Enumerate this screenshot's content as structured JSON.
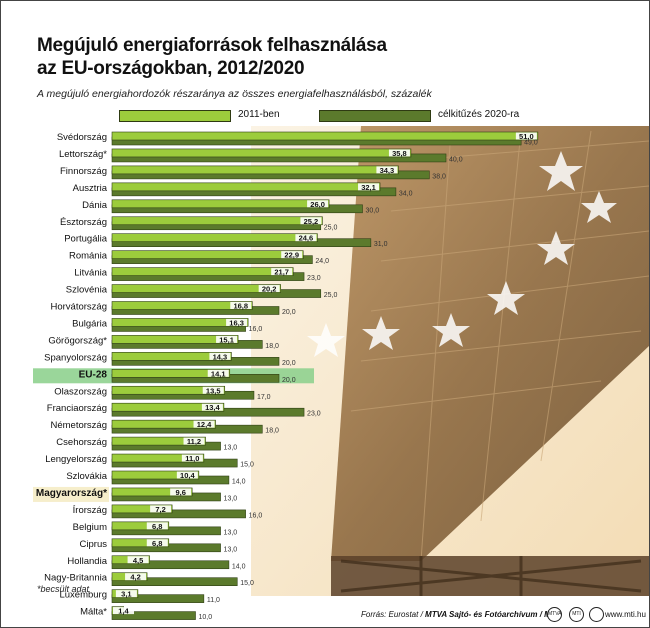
{
  "title_line1": "Megújuló energiaforrások felhasználása",
  "title_line2": "az EU-országokban, 2012/2020",
  "subtitle": "A megújuló energiahordozók részaránya az összes energiafelhasználásból, százalék",
  "footnote": "*becsült adat",
  "source_prefix": "Forrás: Eurostat / ",
  "source_bold": "MTVA Sajtó- és Fotóarchívum / MTI",
  "website": "www.mti.hu",
  "colors": {
    "bar_2011": "#9ccc3c",
    "bar_2020": "#5b7a2c",
    "eu_highlight": "#8fd18f",
    "hu_highlight": "#f6eecb"
  },
  "chart_data": {
    "type": "bar",
    "orientation": "horizontal",
    "title": "Megújuló energiaforrások felhasználása az EU-országokban, 2012/2020",
    "subtitle": "A megújuló energiahordozók részaránya az összes energiafelhasználásból, százalék",
    "legend_placement": "top",
    "categories": [
      "Svédország",
      "Lettország*",
      "Finnország",
      "Ausztria",
      "Dánia",
      "Észtország",
      "Portugália",
      "Románia",
      "Litvánia",
      "Szlovénia",
      "Horvátország",
      "Bulgária",
      "Görögország*",
      "Spanyolország",
      "EU-28",
      "Olaszország",
      "Franciaország",
      "Németország",
      "Csehország",
      "Lengyelország",
      "Szlovákia",
      "Magyarország*",
      "Írország",
      "Belgium",
      "Ciprus",
      "Hollandia",
      "Nagy-Britannia",
      "Luxemburg",
      "Málta*"
    ],
    "series": [
      {
        "name": "2011-ben",
        "values": [
          51.0,
          35.8,
          34.3,
          32.1,
          26.0,
          25.2,
          24.6,
          22.9,
          21.7,
          20.2,
          16.8,
          16.3,
          15.1,
          14.3,
          14.1,
          13.5,
          13.4,
          12.4,
          11.2,
          11.0,
          10.4,
          9.6,
          7.2,
          6.8,
          6.8,
          4.5,
          4.2,
          3.1,
          1.4
        ],
        "labels": [
          "51,0",
          "35,8",
          "34,3",
          "32,1",
          "26,0",
          "25,2",
          "24,6",
          "22,9",
          "21,7",
          "20,2",
          "16,8",
          "16,3",
          "15,1",
          "14,3",
          "14,1",
          "13,5",
          "13,4",
          "12,4",
          "11,2",
          "11,0",
          "10,4",
          "9,6",
          "7,2",
          "6,8",
          "6,8",
          "4,5",
          "4,2",
          "3,1",
          "1,4"
        ]
      },
      {
        "name": "célkitűzés 2020-ra",
        "values": [
          49.0,
          40.0,
          38.0,
          34.0,
          30.0,
          25.0,
          31.0,
          24.0,
          23.0,
          25.0,
          20.0,
          16.0,
          18.0,
          20.0,
          20.0,
          17.0,
          23.0,
          18.0,
          13.0,
          15.0,
          14.0,
          13.0,
          16.0,
          13.0,
          13.0,
          14.0,
          15.0,
          11.0,
          10.0
        ],
        "labels": [
          "49,0",
          "40,0",
          "38,0",
          "34,0",
          "30,0",
          "25,0",
          "31,0",
          "24,0",
          "23,0",
          "25,0",
          "20,0",
          "16,0",
          "18,0",
          "20,0",
          "20,0",
          "17,0",
          "23,0",
          "18,0",
          "13,0",
          "15,0",
          "14,0",
          "13,0",
          "16,0",
          "13,0",
          "13,0",
          "14,0",
          "15,0",
          "11,0",
          "10,0"
        ]
      }
    ],
    "highlighted": [
      "EU-28",
      "Magyarország*"
    ],
    "xlim": [
      0,
      51
    ]
  }
}
